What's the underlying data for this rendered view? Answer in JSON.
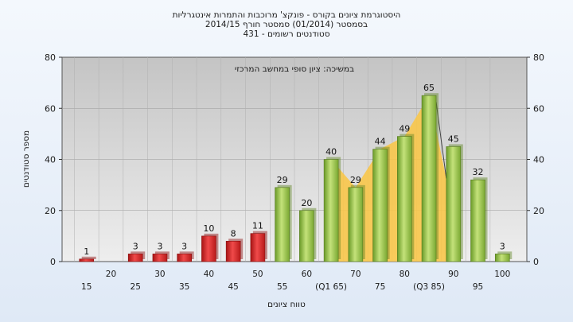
{
  "chart_data": {
    "type": "bar",
    "title_lines": [
      "היסטוגרמת ציונים בקורס - פונקצ' מרוכבות והתמרות אינטגרליות",
      "בסמסטר  (01/2014)  סמסטר חורף 2014/15",
      "סטודנטים רשומים - 431"
    ],
    "annotation": "במשיכה: ציון סופי במחשב המרכזי",
    "xlabel": "טווח ציונים",
    "ylabel": "מספר סטודנטים",
    "ylim": [
      0,
      80
    ],
    "yticks": [
      0,
      20,
      40,
      60,
      80
    ],
    "categories": [
      "15",
      "20",
      "25",
      "30",
      "35",
      "40",
      "45",
      "50",
      "55",
      "60",
      "(Q1 65)",
      "70",
      "75",
      "80",
      "(Q3 85)",
      "90",
      "95",
      "100"
    ],
    "values": [
      1,
      0,
      3,
      3,
      3,
      10,
      8,
      11,
      29,
      20,
      40,
      29,
      44,
      49,
      65,
      45,
      32,
      3
    ],
    "data_labels": [
      "1",
      "",
      "3",
      "3",
      "3",
      "10",
      "8",
      "11",
      "29",
      "20",
      "40",
      "29",
      "44",
      "49",
      "65",
      "45",
      "32",
      "3"
    ],
    "fail_color": "#e02a2a",
    "pass_color": "#9ccc4a",
    "highlight_color": "#f8c74a",
    "highlight_range": [
      "(Q1 65)",
      "(Q3 85)"
    ],
    "grid": true,
    "legend": "none"
  }
}
